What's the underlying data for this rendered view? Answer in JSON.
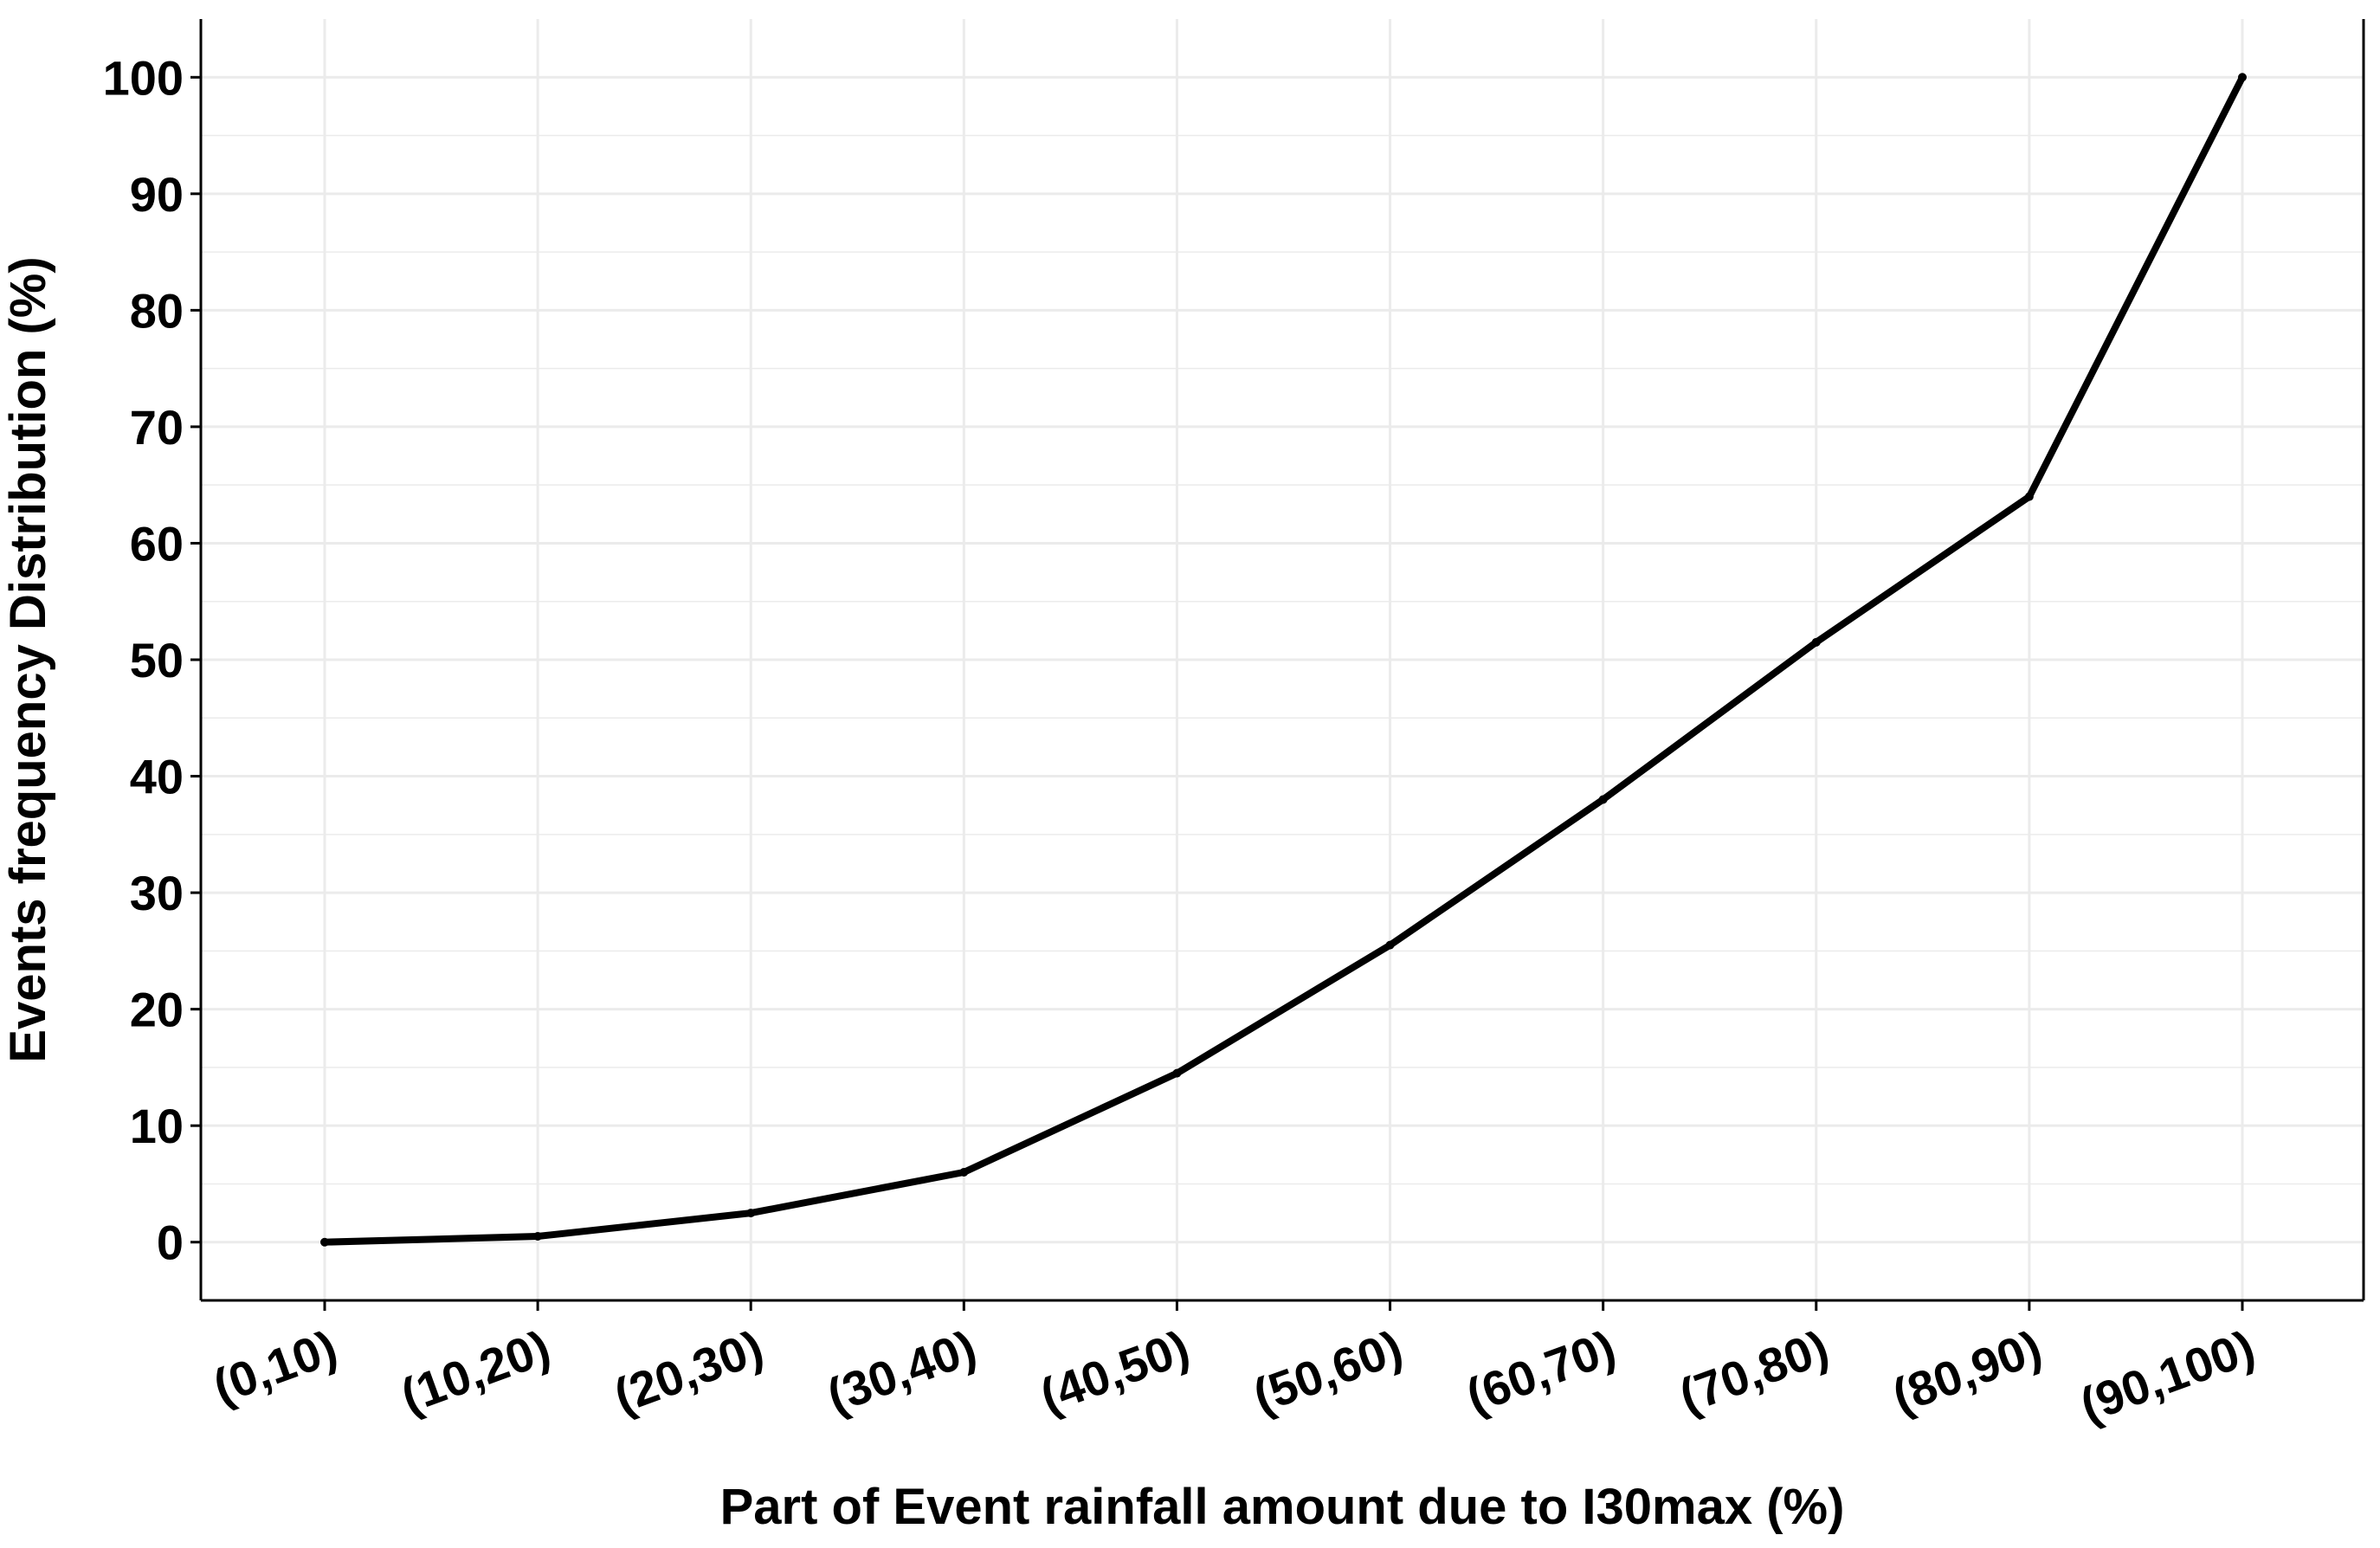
{
  "chart_data": {
    "type": "line",
    "title": "",
    "xlabel": "Part of Event rainfall amount due to I30max (%)",
    "ylabel": "Events frequency Distribution (%)",
    "categories": [
      "(0,10)",
      "(10,20)",
      "(20,30)",
      "(30,40)",
      "(40,50)",
      "(50,60)",
      "(60,70)",
      "(70,80)",
      "(80,90)",
      "(90,100)"
    ],
    "series": [
      {
        "values": [
          0,
          0.5,
          2.5,
          6,
          14.5,
          25.5,
          38,
          51.5,
          64,
          100
        ]
      }
    ],
    "ylim": [
      -5,
      105
    ],
    "yticks": [
      0,
      10,
      20,
      30,
      40,
      50,
      60,
      70,
      80,
      90,
      100
    ],
    "grid": true,
    "legend": "none",
    "colors": {
      "line": "#000000",
      "grid": "#ebebeb",
      "axis": "#000000",
      "background": "#ffffff"
    }
  }
}
